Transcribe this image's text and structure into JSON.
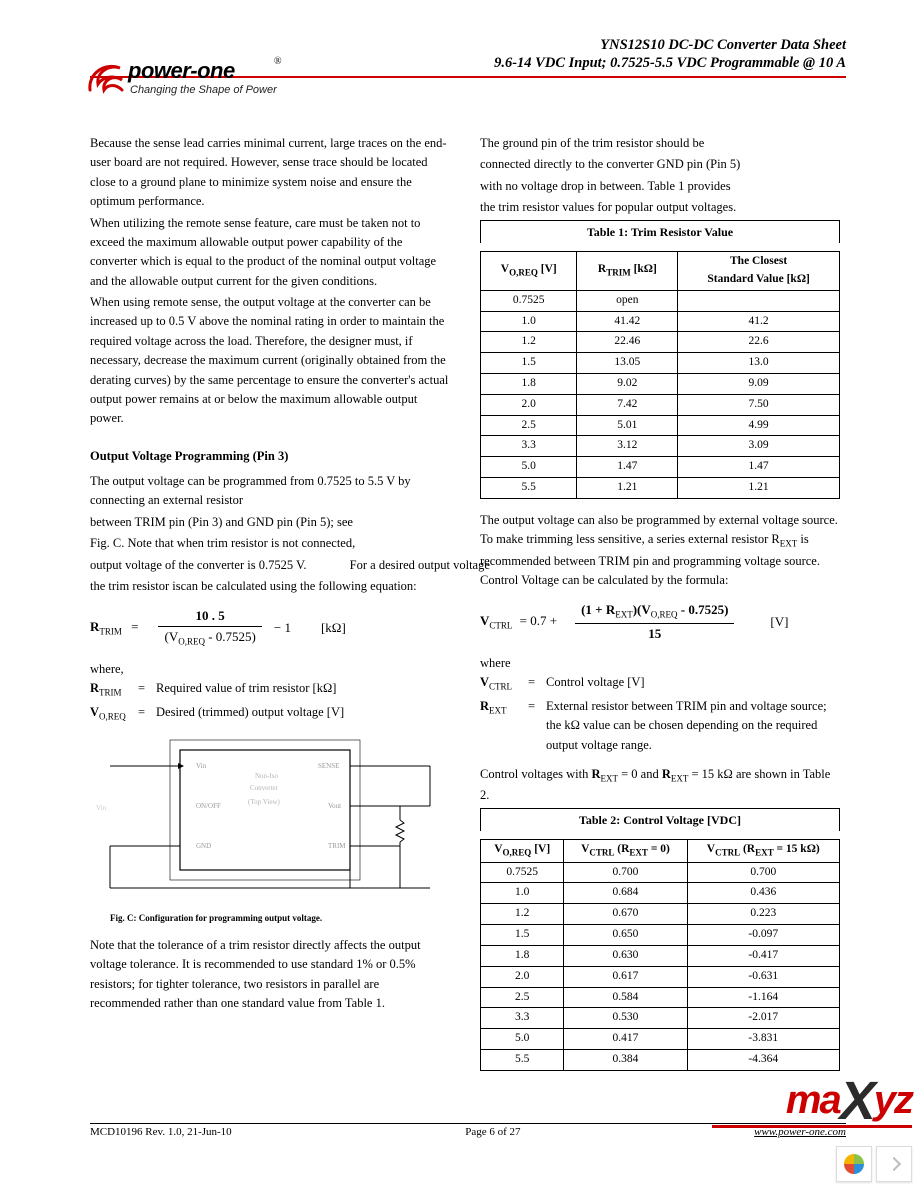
{
  "header": {
    "title1": "YNS12S10 DC-DC Converter Data Sheet",
    "title2": "9.6-14 VDC Input; 0.7525-5.5 VDC Programmable @ 10 A",
    "logo_name": "power-one",
    "logo_tagline": "Changing the Shape of Power",
    "logo_reg": "®",
    "rule_color": "#cc0000"
  },
  "left": {
    "p1": "Because the sense lead carries minimal current, large traces on the end-user board are not required. However, sense trace should be located close to a ground plane to minimize system noise and ensure the optimum performance.",
    "p2": "When utilizing the remote sense feature, care must be taken not to exceed the maximum allowable output power capability of the converter which is equal to the product of the nominal output voltage and the allowable output current for the given conditions.",
    "p3": "When using remote sense, the output voltage at the converter can be increased up to 0.5 V above the nominal rating in order to maintain the required voltage across the load. Therefore, the designer must, if necessary, decrease the maximum current (originally obtained from the derating curves) by the same percentage to ensure the converter's actual output power remains at or below the maximum allowable output power.",
    "h1": "Output Voltage Programming (Pin 3)",
    "p4": "The output voltage can be programmed from 0.7525 to 5.5 V by connecting an external resistor",
    "p4b": "between TRIM pin (Pin 3) and GND pin (Pin 5); see",
    "p4c": "Fig. C. Note that when trim resistor is not connected,",
    "p4d": "output voltage of the converter is 0.7525 V.",
    "p4e": "For a desired output voltage",
    "p4f": "the trim resistor is",
    "p4g": "can be calculated using the following equation:",
    "eq1": {
      "lhs": "R",
      "lhs_sub": "TRIM",
      "eq": "=",
      "num": "10 . 5",
      "den_pre": "(V",
      "den_sub": "O,REQ",
      "den_post": " - 0.7525)",
      "op": "− 1",
      "unit": "[kΩ]"
    },
    "where": "where,",
    "where_r": {
      "sym": "R",
      "sub": "TRIM",
      "eq": "=",
      "desc": "Required value of trim resistor [kΩ]"
    },
    "where_v": {
      "sym": "V",
      "sub": "O,REQ",
      "eq": "=",
      "desc": "Desired (trimmed) output voltage [V]"
    },
    "figc_caption": "Fig. C: Configuration for programming output voltage.",
    "figc": {
      "labels": {
        "vin": "Vin",
        "gnd": "GND",
        "onoff": "ON/OFF",
        "vout": "Vout",
        "trim": "TRIM",
        "sense": "SENSE",
        "gnd2": "GND",
        "center1": "Non-Iso",
        "center2": "Converter",
        "center3": "(Top View)"
      }
    },
    "p5": "Note that the tolerance of a trim resistor directly affects the output voltage tolerance. It is recommended to use standard 1% or 0.5% resistors; for tighter tolerance, two resistors in parallel are recommended rather than one standard value from Table 1."
  },
  "right": {
    "p1": "The ground pin of the trim resistor should be",
    "p1b": "connected directly to the converter GND pin (Pin 5)",
    "p1c": "with no voltage drop in between. Table 1 provides",
    "p1d": "the trim resistor values for popular output voltages.",
    "t1": {
      "title": "Table 1: Trim Resistor Value",
      "h1": "V",
      "h1sub": "O,REQ",
      "h1u": " [V]",
      "h2": "R",
      "h2sub": "TRIM",
      "h2u": " [kΩ]",
      "h3a": "The Closest",
      "h3b": "Standard Value [kΩ]",
      "rows": [
        [
          "0.7525",
          "open",
          ""
        ],
        [
          "1.0",
          "41.42",
          "41.2"
        ],
        [
          "1.2",
          "22.46",
          "22.6"
        ],
        [
          "1.5",
          "13.05",
          "13.0"
        ],
        [
          "1.8",
          "9.02",
          "9.09"
        ],
        [
          "2.0",
          "7.42",
          "7.50"
        ],
        [
          "2.5",
          "5.01",
          "4.99"
        ],
        [
          "3.3",
          "3.12",
          "3.09"
        ],
        [
          "5.0",
          "1.47",
          "1.47"
        ],
        [
          "5.5",
          "1.21",
          "1.21"
        ]
      ]
    },
    "p2": "The output voltage can also be programmed by external voltage source. To make trimming less sensitive, a series external resistor R",
    "p2sub": "EXT",
    "p2b": " is recommended between TRIM pin and programming voltage source. Control Voltage can be calculated by the formula:",
    "eq2": {
      "lhs": "V",
      "lhs_sub": "CTRL",
      "eq": "= 0.7 +",
      "num_a": "(1 + R",
      "num_sub": "EXT",
      "num_b": ")(V",
      "num_sub2": "O,REQ",
      "num_c": " - 0.7525)",
      "den": "15",
      "unit": "[V]"
    },
    "where": "where",
    "where_vc": {
      "sym": "V",
      "sub": "CTRL",
      "eq": "=",
      "desc": "Control voltage [V]"
    },
    "where_re": {
      "sym": "R",
      "sub": "EXT",
      "eq": "=",
      "desc": "External resistor between TRIM pin and voltage source; the kΩ value can be chosen depending on the required output voltage range."
    },
    "p3a": "Control voltages with ",
    "p3sym1": "R",
    "p3sub1": "EXT",
    "p3mid": " = 0 and ",
    "p3sym2": "R",
    "p3sub2": "EXT",
    "p3end": " = 15 kΩ are shown in Table 2.",
    "t2": {
      "title": "Table 2: Control Voltage [VDC]",
      "h1": "V",
      "h1sub": "O,REQ",
      "h1u": " [V]",
      "h2pre": "V",
      "h2sub": "CTRL",
      "h2a": " (R",
      "h2asub": "EXT",
      "h2b": " = 0)",
      "h3pre": "V",
      "h3sub": "CTRL",
      "h3a": " (R",
      "h3asub": "EXT",
      "h3b": " = 15 kΩ)",
      "rows": [
        [
          "0.7525",
          "0.700",
          "0.700"
        ],
        [
          "1.0",
          "0.684",
          "0.436"
        ],
        [
          "1.2",
          "0.670",
          "0.223"
        ],
        [
          "1.5",
          "0.650",
          "-0.097"
        ],
        [
          "1.8",
          "0.630",
          "-0.417"
        ],
        [
          "2.0",
          "0.617",
          "-0.631"
        ],
        [
          "2.5",
          "0.584",
          "-1.164"
        ],
        [
          "3.3",
          "0.530",
          "-2.017"
        ],
        [
          "5.0",
          "0.417",
          "-3.831"
        ],
        [
          "5.5",
          "0.384",
          "-4.364"
        ]
      ]
    }
  },
  "footer": {
    "left": "MCD10196 Rev. 1.0, 21-Jun-10",
    "mid": "Page 6 of 27",
    "url": "www.power-one.com"
  },
  "watermark": {
    "ma": "ma",
    "x": "X",
    "yz": "yz",
    "color_red": "#cc0000",
    "color_dark": "#2b2b2b"
  },
  "nav": {
    "pinwheel_colors": [
      "#f2b600",
      "#8bc34a",
      "#2b90d9",
      "#e24a33"
    ]
  }
}
